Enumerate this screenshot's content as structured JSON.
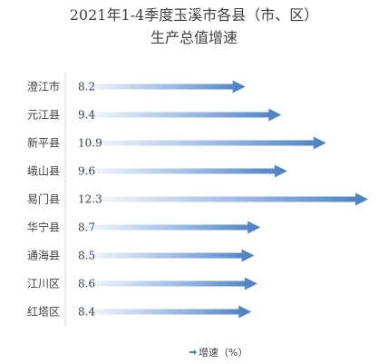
{
  "chart_data": {
    "type": "bar",
    "title": "2021年1-4季度玉溪市各县（市、区）",
    "subtitle": "生产总值增速",
    "categories": [
      "澄江市",
      "元江县",
      "新平县",
      "峨山县",
      "易门县",
      "华宁县",
      "通海县",
      "江川区",
      "红塔区"
    ],
    "series": [
      {
        "name": "增速（%）",
        "values": [
          8.2,
          9.4,
          10.9,
          9.6,
          12.3,
          8.7,
          8.5,
          8.6,
          8.4
        ]
      }
    ],
    "value_labels": [
      "8.2",
      "9.4",
      "10.9",
      "9.6",
      "12.3",
      "8.7",
      "8.5",
      "8.6",
      "8.4"
    ],
    "orientation": "horizontal",
    "bar_style": "arrow",
    "bar_color": "#4a7fc1",
    "grid": false,
    "legend_position": "bottom",
    "legend_label": "增速（%）",
    "xlim": [
      0,
      12.3
    ]
  }
}
